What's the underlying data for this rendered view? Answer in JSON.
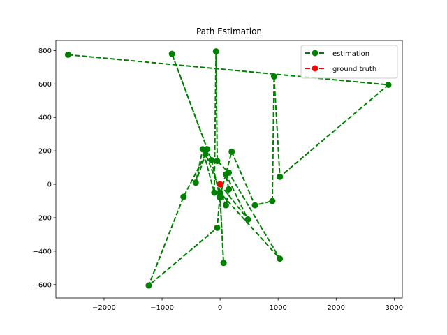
{
  "chart_data": {
    "type": "line",
    "title": "Path Estimation",
    "xlabel": "",
    "ylabel": "",
    "xlim": [
      -2830,
      3140
    ],
    "ylim": [
      -680,
      860
    ],
    "xticks": [
      -2000,
      -1000,
      0,
      1000,
      2000,
      3000
    ],
    "yticks": [
      -600,
      -400,
      -200,
      0,
      200,
      400,
      600,
      800
    ],
    "xtick_labels": [
      "−2000",
      "−1000",
      "0",
      "1000",
      "2000",
      "3000"
    ],
    "ytick_labels": [
      "−600",
      "−400",
      "−200",
      "0",
      "200",
      "400",
      "600",
      "800"
    ],
    "grid": false,
    "legend": {
      "placement": "top-right"
    },
    "series": [
      {
        "name": "estimation",
        "color": "#008000",
        "linestyle": "dashed",
        "marker": "circle",
        "points": [
          [
            -2620,
            775
          ],
          [
            2900,
            595
          ],
          [
            1030,
            45
          ],
          [
            930,
            645
          ],
          [
            900,
            -100
          ],
          [
            600,
            -125
          ],
          [
            200,
            195
          ],
          [
            0,
            -70
          ],
          [
            60,
            -470
          ],
          [
            0,
            -80
          ],
          [
            -150,
            145
          ],
          [
            -830,
            780
          ],
          [
            -220,
            210
          ],
          [
            -420,
            10
          ],
          [
            -300,
            210
          ],
          [
            -100,
            -50
          ],
          [
            -70,
            795
          ],
          [
            -50,
            140
          ],
          [
            150,
            70
          ],
          [
            1030,
            -445
          ],
          [
            0,
            -50
          ],
          [
            -50,
            -260
          ],
          [
            -1230,
            -605
          ],
          [
            -630,
            -75
          ],
          [
            -250,
            180
          ],
          [
            100,
            -125
          ],
          [
            150,
            -30
          ],
          [
            100,
            60
          ],
          [
            480,
            -210
          ],
          [
            0,
            0
          ],
          [
            0,
            0
          ]
        ]
      },
      {
        "name": "ground truth",
        "color": "#ff0000",
        "linestyle": "dashed",
        "marker": "circle",
        "points": [
          [
            0,
            0
          ]
        ]
      }
    ]
  }
}
